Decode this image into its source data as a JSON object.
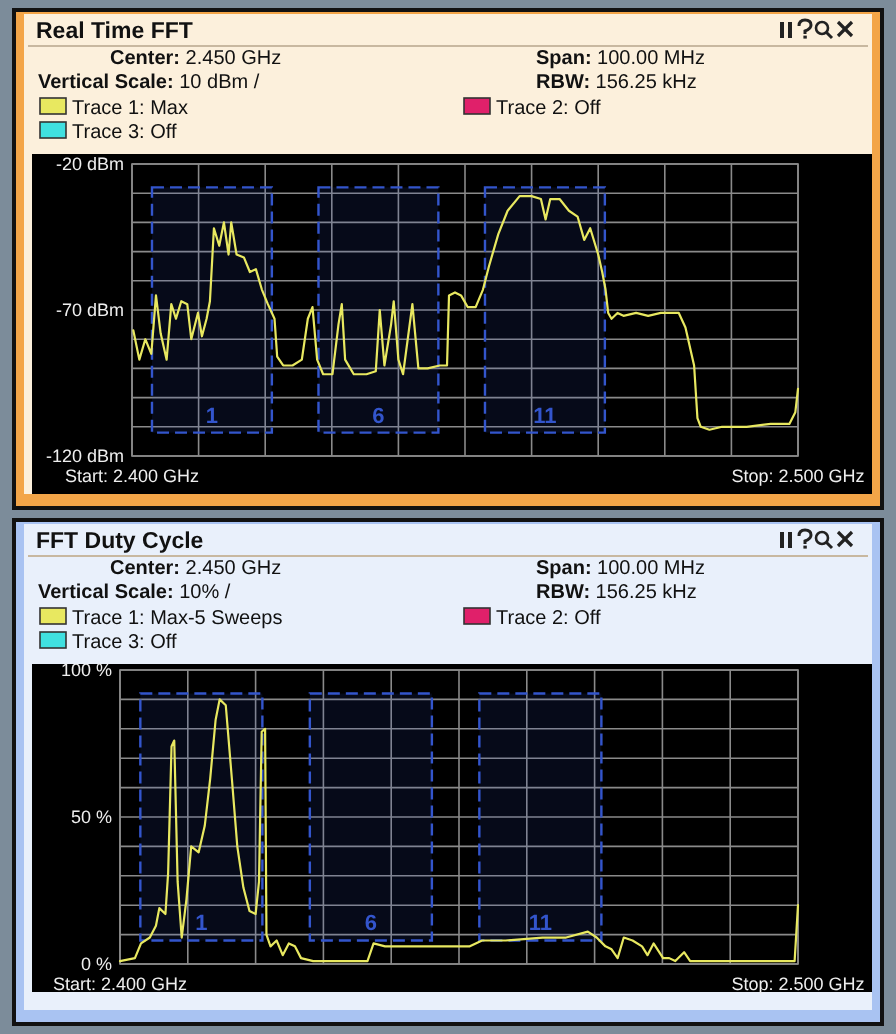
{
  "chart_data": [
    {
      "type": "line",
      "title": "Real Time FFT",
      "annotations": [
        "Center: 2.450 GHz",
        "Vertical Scale: 10 dBm /",
        "Span: 100.00 MHz",
        "RBW: 156.25 kHz"
      ],
      "legend": "top",
      "grid": true,
      "xlim": [
        2.4,
        2.5
      ],
      "ylim": [
        -120,
        -20
      ],
      "xticks": [
        {
          "value": 2.4,
          "label": "Start: 2.400 GHz"
        },
        {
          "value": 2.41,
          "label": null
        },
        {
          "value": 2.42,
          "label": null
        },
        {
          "value": 2.43,
          "label": null
        },
        {
          "value": 2.44,
          "label": null
        },
        {
          "value": 2.45,
          "label": null
        },
        {
          "value": 2.46,
          "label": null
        },
        {
          "value": 2.47,
          "label": null
        },
        {
          "value": 2.48,
          "label": null
        },
        {
          "value": 2.49,
          "label": null
        },
        {
          "value": 2.5,
          "label": "Stop: 2.500 GHz"
        }
      ],
      "yticks": [
        {
          "value": -120,
          "label": "-120 dBm"
        },
        {
          "value": -110,
          "label": null
        },
        {
          "value": -100,
          "label": null
        },
        {
          "value": -90,
          "label": null
        },
        {
          "value": -80,
          "label": null
        },
        {
          "value": -70,
          "label": "-70 dBm"
        },
        {
          "value": -60,
          "label": null
        },
        {
          "value": -50,
          "label": null
        },
        {
          "value": -40,
          "label": null
        },
        {
          "value": -30,
          "label": null
        },
        {
          "value": -20,
          "label": "-20 dBm"
        }
      ],
      "bands": [
        {
          "axis": "x",
          "from": 2.403,
          "to": 2.421,
          "label": "1",
          "color": "#3355cc"
        },
        {
          "axis": "x",
          "from": 2.428,
          "to": 2.446,
          "label": "6",
          "color": "#3355cc"
        },
        {
          "axis": "x",
          "from": 2.453,
          "to": 2.471,
          "label": "11",
          "color": "#3355cc"
        }
      ],
      "series": [
        {
          "name": "Trace 1: Max",
          "color": "#e8e860",
          "x": [
            2.4002,
            2.4011,
            2.402,
            2.4029,
            2.4036,
            2.4043,
            2.4052,
            2.4059,
            2.4066,
            2.4074,
            2.4083,
            2.4089,
            2.4099,
            2.4105,
            2.4112,
            2.4117,
            2.4123,
            2.4131,
            2.4138,
            2.4145,
            2.4149,
            2.4157,
            2.4168,
            2.4177,
            2.4186,
            2.4195,
            2.4204,
            2.4214,
            2.4218,
            2.4227,
            2.4241,
            2.4255,
            2.4264,
            2.4271,
            2.4278,
            2.4287,
            2.4301,
            2.431,
            2.4315,
            2.432,
            2.4333,
            2.4352,
            2.4366,
            2.4372,
            2.4379,
            2.4389,
            2.4393,
            2.44,
            2.4407,
            2.4421,
            2.443,
            2.4444,
            2.4462,
            2.4473,
            2.4476,
            2.4485,
            2.4494,
            2.4504,
            2.4516,
            2.4527,
            2.4536,
            2.455,
            2.4564,
            2.4582,
            2.46,
            2.4614,
            2.4621,
            2.4628,
            2.4642,
            2.4656,
            2.4669,
            2.4679,
            2.4688,
            2.47,
            2.4706,
            2.4711,
            2.4715,
            2.472,
            2.4729,
            2.4738,
            2.4757,
            2.4775,
            2.4794,
            2.4812,
            2.4821,
            2.4831,
            2.4844,
            2.4849,
            2.4854,
            2.4867,
            2.4886,
            2.4923,
            2.4959,
            2.4987,
            2.4996,
            2.5
          ],
          "values": [
            -77,
            -87,
            -80,
            -85,
            -65,
            -78,
            -87,
            -68,
            -73,
            -67,
            -68,
            -80,
            -71,
            -79,
            -73,
            -67,
            -42,
            -48,
            -40,
            -51,
            -40,
            -51,
            -52,
            -57,
            -56,
            -63,
            -68,
            -73,
            -86,
            -89,
            -89,
            -87,
            -73,
            -69,
            -87,
            -92,
            -92,
            -75,
            -68,
            -87,
            -92,
            -92,
            -91,
            -70,
            -89,
            -75,
            -67,
            -87,
            -92,
            -68,
            -90,
            -90,
            -89,
            -89,
            -65,
            -64,
            -65,
            -69,
            -69,
            -63,
            -55,
            -44,
            -36,
            -31,
            -31,
            -32,
            -39,
            -32,
            -32,
            -36,
            -38,
            -46,
            -42,
            -51,
            -57,
            -63,
            -71,
            -73,
            -71,
            -72,
            -71,
            -72,
            -71,
            -71,
            -71,
            -76,
            -89,
            -107,
            -110,
            -111,
            -110,
            -110,
            -109,
            -109,
            -105,
            -97
          ]
        },
        {
          "name": "Trace 2: Off",
          "color": "#e0206a"
        },
        {
          "name": "Trace 3: Off",
          "color": "#40e0e0"
        }
      ]
    },
    {
      "type": "line",
      "title": "FFT Duty Cycle",
      "annotations": [
        "Center: 2.450 GHz",
        "Vertical Scale: 10% /",
        "Span: 100.00 MHz",
        "RBW: 156.25 kHz"
      ],
      "legend": "top",
      "grid": true,
      "xlim": [
        2.4,
        2.5
      ],
      "ylim": [
        0,
        100
      ],
      "xticks": [
        {
          "value": 2.4,
          "label": "Start: 2.400 GHz"
        },
        {
          "value": 2.41,
          "label": null
        },
        {
          "value": 2.42,
          "label": null
        },
        {
          "value": 2.43,
          "label": null
        },
        {
          "value": 2.44,
          "label": null
        },
        {
          "value": 2.45,
          "label": null
        },
        {
          "value": 2.46,
          "label": null
        },
        {
          "value": 2.47,
          "label": null
        },
        {
          "value": 2.48,
          "label": null
        },
        {
          "value": 2.49,
          "label": null
        },
        {
          "value": 2.5,
          "label": "Stop: 2.500 GHz"
        }
      ],
      "yticks": [
        {
          "value": 0,
          "label": "0 %"
        },
        {
          "value": 10,
          "label": null
        },
        {
          "value": 20,
          "label": null
        },
        {
          "value": 30,
          "label": null
        },
        {
          "value": 40,
          "label": null
        },
        {
          "value": 50,
          "label": "50 %"
        },
        {
          "value": 60,
          "label": null
        },
        {
          "value": 70,
          "label": null
        },
        {
          "value": 80,
          "label": null
        },
        {
          "value": 90,
          "label": null
        },
        {
          "value": 100,
          "label": "100 %"
        }
      ],
      "bands": [
        {
          "axis": "x",
          "from": 2.403,
          "to": 2.421,
          "label": "1",
          "color": "#3355cc"
        },
        {
          "axis": "x",
          "from": 2.428,
          "to": 2.446,
          "label": "6",
          "color": "#3355cc"
        },
        {
          "axis": "x",
          "from": 2.453,
          "to": 2.471,
          "label": "11",
          "color": "#3355cc"
        }
      ],
      "series": [
        {
          "name": "Trace 1: Max-5 Sweeps",
          "color": "#e8e860",
          "x": [
            2.4,
            2.4022,
            2.4031,
            2.4044,
            2.4053,
            2.4058,
            2.4067,
            2.4071,
            2.4076,
            2.408,
            2.4085,
            2.4091,
            2.4098,
            2.4105,
            2.4116,
            2.4125,
            2.4133,
            2.4141,
            2.4147,
            2.4156,
            2.4165,
            2.4173,
            2.4182,
            2.4191,
            2.42,
            2.4205,
            2.4209,
            2.4214,
            2.4216,
            2.4222,
            2.4231,
            2.424,
            2.4249,
            2.4258,
            2.4267,
            2.4285,
            2.432,
            2.4365,
            2.4374,
            2.4391,
            2.4463,
            2.4516,
            2.4534,
            2.4569,
            2.4623,
            2.4658,
            2.469,
            2.4703,
            2.4716,
            2.4725,
            2.4734,
            2.4743,
            2.4756,
            2.477,
            2.4778,
            2.4787,
            2.4801,
            2.481,
            2.4819,
            2.4832,
            2.4841,
            2.4872,
            2.4925,
            2.4979,
            2.4995,
            2.5
          ],
          "values": [
            1,
            2,
            7,
            9,
            13,
            19,
            17,
            31,
            74,
            76,
            28,
            9,
            22,
            40,
            38,
            47,
            63,
            83,
            90,
            88,
            63,
            40,
            26,
            18,
            17,
            28,
            79,
            80,
            10,
            6,
            8,
            3,
            7,
            6,
            2,
            1,
            1,
            1,
            7,
            6,
            6,
            6,
            8,
            8,
            9,
            9,
            11,
            9,
            6,
            5,
            2,
            9,
            8,
            6,
            3,
            7,
            2,
            2,
            1,
            4,
            1,
            1,
            1,
            1,
            1,
            20
          ]
        },
        {
          "name": "Trace 2: Off",
          "color": "#e0206a"
        },
        {
          "name": "Trace 3: Off",
          "color": "#40e0e0"
        }
      ]
    }
  ]
}
